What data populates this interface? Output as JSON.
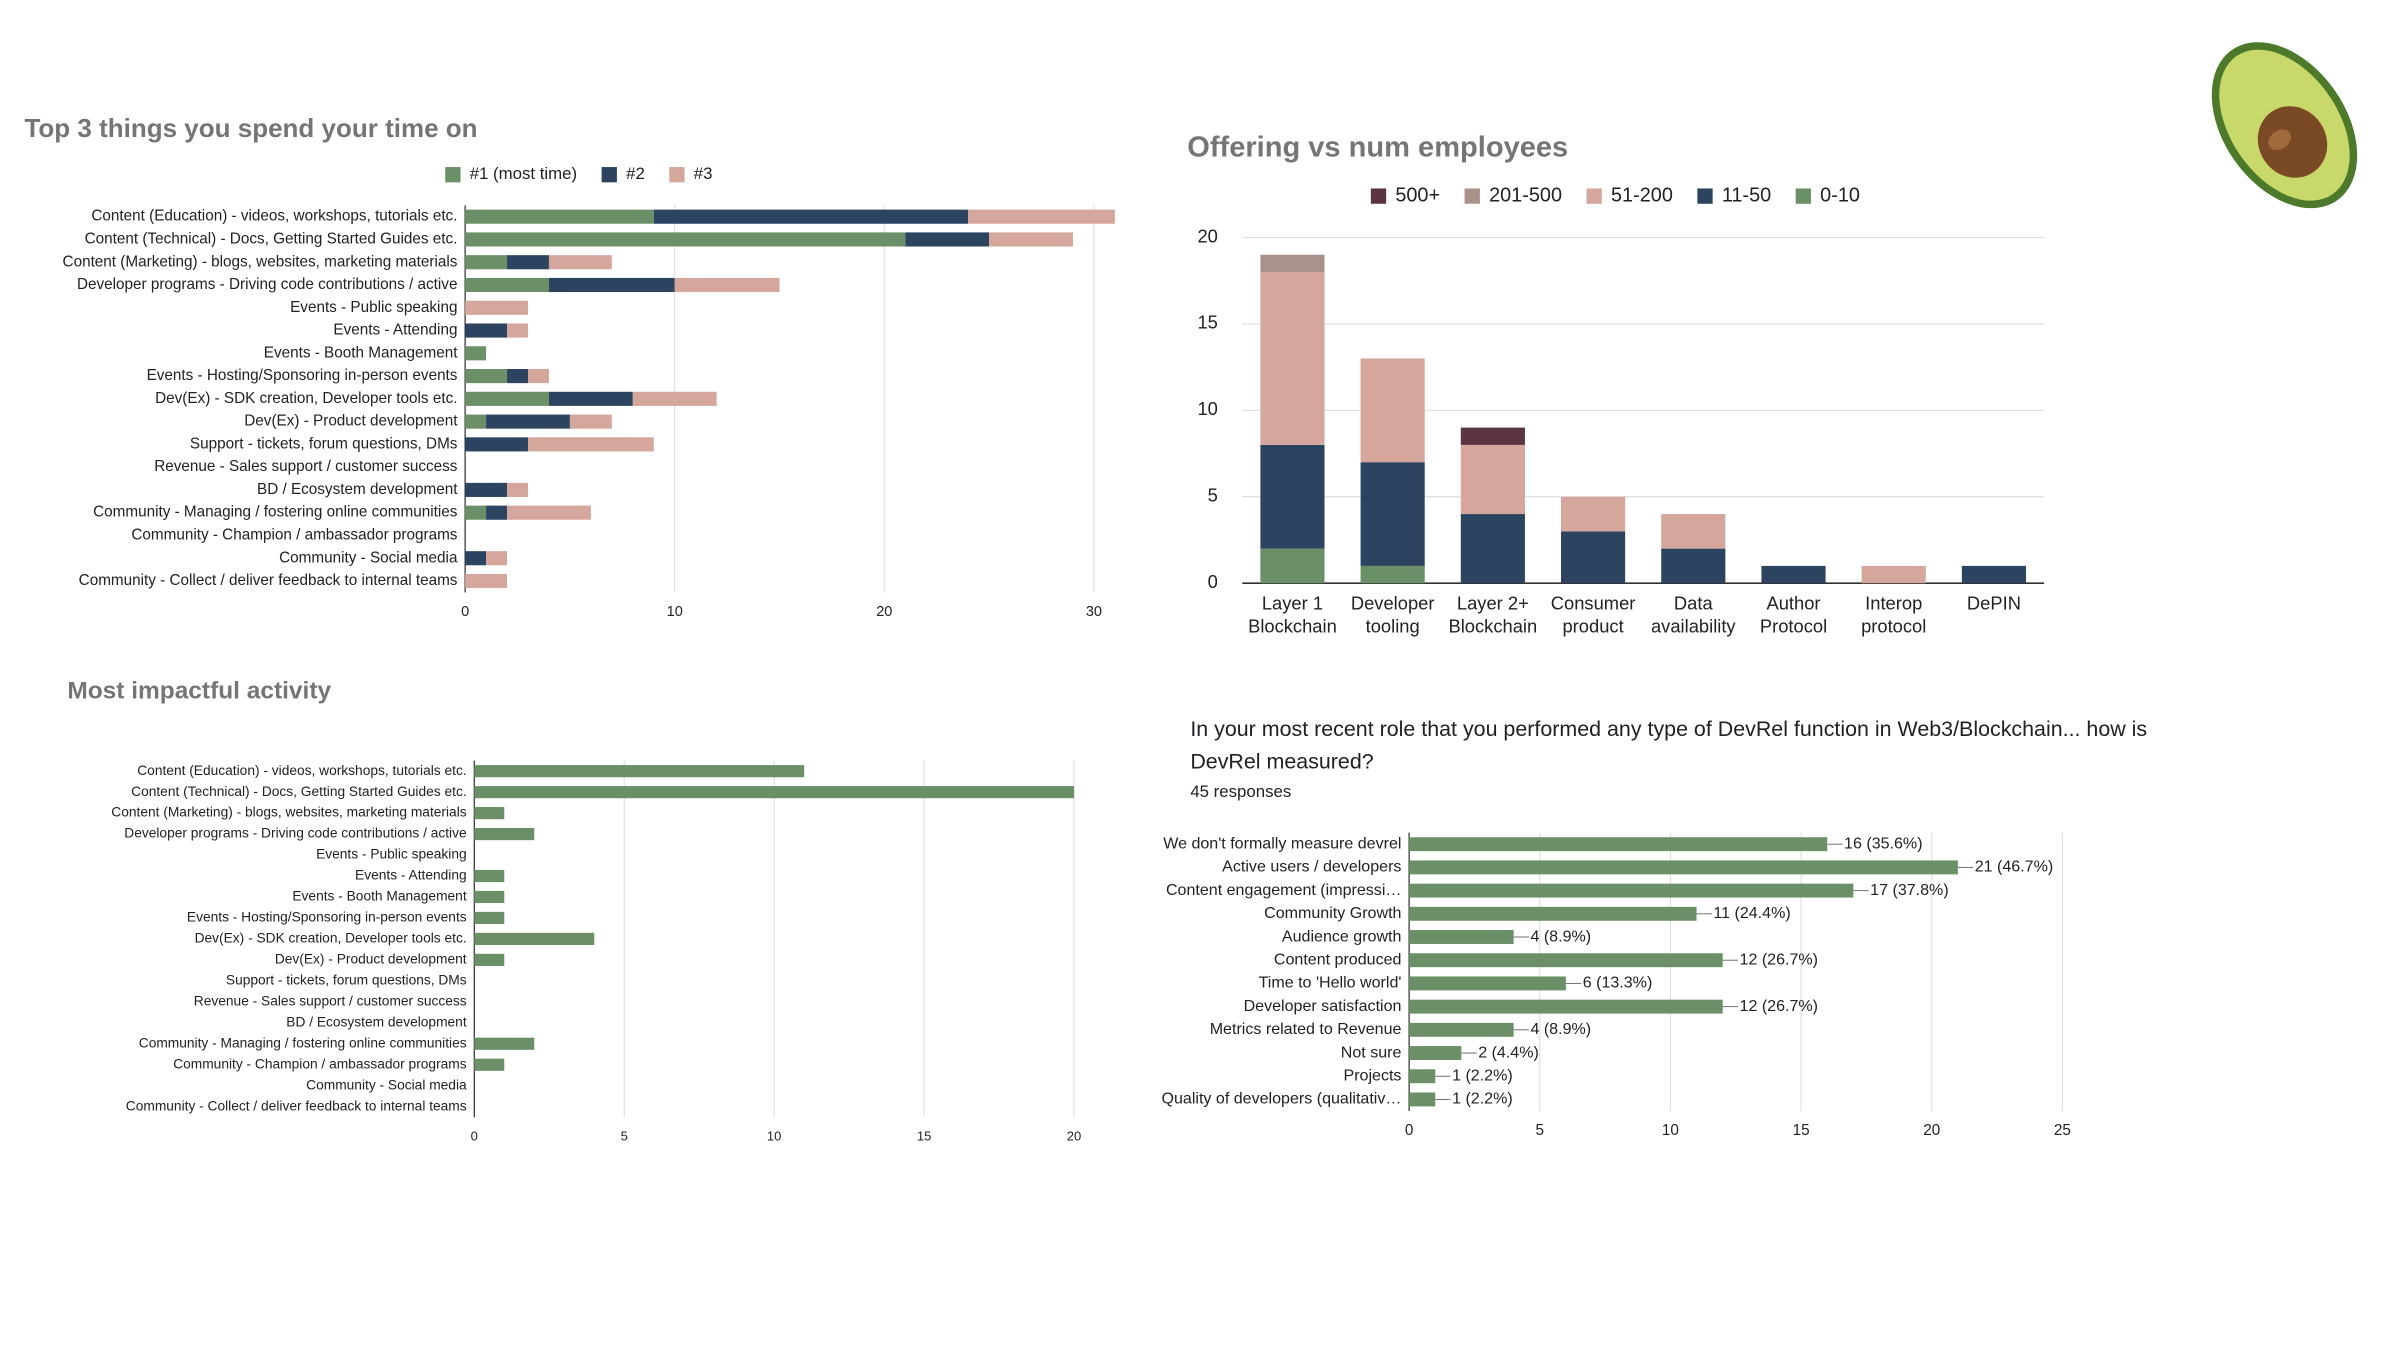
{
  "chart_data": [
    {
      "type": "bar",
      "orientation": "horizontal",
      "stacked": true,
      "title": "Top 3 things you spend your time on",
      "categories": [
        "Content (Education) - videos, workshops, tutorials etc.",
        "Content (Technical) - Docs, Getting Started Guides etc.",
        "Content (Marketing) - blogs, websites, marketing materials",
        "Developer programs - Driving code contributions / active",
        "Events - Public speaking",
        "Events - Attending",
        "Events - Booth Management",
        "Events - Hosting/Sponsoring in-person events",
        "Dev(Ex) - SDK creation, Developer tools etc.",
        "Dev(Ex) - Product development",
        "Support - tickets, forum questions, DMs",
        "Revenue - Sales support / customer success",
        "BD / Ecosystem development",
        "Community - Managing / fostering online communities",
        "Community - Champion / ambassador programs",
        "Community - Social media",
        "Community - Collect / deliver feedback to internal teams"
      ],
      "series": [
        {
          "name": "#1 (most time)",
          "color": "#6b9068",
          "values": [
            9,
            21,
            2,
            4,
            0,
            0,
            1,
            2,
            4,
            1,
            0,
            0,
            0,
            1,
            0,
            0,
            0
          ]
        },
        {
          "name": "#2",
          "color": "#2d4461",
          "values": [
            15,
            4,
            2,
            6,
            0,
            2,
            0,
            1,
            4,
            4,
            3,
            0,
            2,
            1,
            0,
            1,
            0
          ]
        },
        {
          "name": "#3",
          "color": "#d5a69b",
          "values": [
            7,
            4,
            3,
            5,
            3,
            1,
            0,
            1,
            4,
            2,
            6,
            0,
            1,
            4,
            0,
            1,
            2
          ]
        }
      ],
      "xlim": [
        0,
        31
      ],
      "xticks": [
        0,
        10,
        20,
        30
      ],
      "grid": true,
      "legend": "top"
    },
    {
      "type": "bar",
      "orientation": "vertical",
      "stacked": true,
      "title": "Offering vs num employees",
      "categories": [
        "Layer 1 Blockchain",
        "Developer tooling",
        "Layer 2+ Blockchain",
        "Consumer product",
        "Data availability",
        "Author Protocol",
        "Interop protocol",
        "DePIN"
      ],
      "series": [
        {
          "name": "500+",
          "color": "#5c3340",
          "values": [
            0,
            0,
            1,
            0,
            0,
            0,
            0,
            0
          ]
        },
        {
          "name": "201-500",
          "color": "#a8928a",
          "values": [
            1,
            0,
            0,
            0,
            0,
            0,
            0,
            0
          ]
        },
        {
          "name": "51-200",
          "color": "#d5a69b",
          "values": [
            10,
            6,
            4,
            2,
            2,
            0,
            1,
            0
          ]
        },
        {
          "name": "11-50",
          "color": "#2d4461",
          "values": [
            6,
            6,
            4,
            3,
            2,
            1,
            0,
            1
          ]
        },
        {
          "name": "0-10",
          "color": "#6b9068",
          "values": [
            2,
            1,
            0,
            0,
            0,
            0,
            0,
            0
          ]
        }
      ],
      "ylim": [
        0,
        20
      ],
      "yticks": [
        0,
        5,
        10,
        15,
        20
      ],
      "grid": true,
      "legend": "top"
    },
    {
      "type": "bar",
      "orientation": "horizontal",
      "title": "Most impactful activity",
      "categories": [
        "Content (Education) - videos, workshops, tutorials etc.",
        "Content (Technical) - Docs, Getting Started Guides etc.",
        "Content (Marketing) - blogs, websites, marketing materials",
        "Developer programs - Driving code contributions / active",
        "Events - Public speaking",
        "Events - Attending",
        "Events - Booth Management",
        "Events - Hosting/Sponsoring in-person events",
        "Dev(Ex) - SDK creation, Developer tools etc.",
        "Dev(Ex) - Product development",
        "Support - tickets, forum questions, DMs",
        "Revenue - Sales support / customer success",
        "BD / Ecosystem development",
        "Community - Managing / fostering online communities",
        "Community - Champion / ambassador programs",
        "Community - Social media",
        "Community - Collect / deliver feedback to internal teams"
      ],
      "values": [
        11,
        20,
        1,
        2,
        0,
        1,
        1,
        1,
        4,
        1,
        0,
        0,
        0,
        2,
        1,
        0,
        0
      ],
      "color": "#6b9068",
      "xlim": [
        0,
        20
      ],
      "xticks": [
        0,
        5,
        10,
        15,
        20
      ],
      "grid": true
    },
    {
      "type": "bar",
      "orientation": "horizontal",
      "title": "In your most recent role that you performed any type of DevRel function in Web3/Blockchain... how is DevRel measured?",
      "subtitle": "45 responses",
      "categories": [
        "We don't formally measure devrel",
        "Active users / developers",
        "Content engagement (impressi…",
        "Community Growth",
        "Audience growth",
        "Content produced",
        "Time to 'Hello world'",
        "Developer satisfaction",
        "Metrics related to Revenue",
        "Not sure",
        "Projects",
        "Quality of developers (qualitativ…"
      ],
      "values": [
        16,
        21,
        17,
        11,
        4,
        12,
        6,
        12,
        4,
        2,
        1,
        1
      ],
      "value_labels": [
        "16 (35.6%)",
        "21 (46.7%)",
        "17 (37.8%)",
        "11 (24.4%)",
        "4 (8.9%)",
        "12 (26.7%)",
        "6 (13.3%)",
        "12 (26.7%)",
        "4 (8.9%)",
        "2 (4.4%)",
        "1 (2.2%)",
        "1 (2.2%)"
      ],
      "color": "#6b9068",
      "xlim": [
        0,
        25
      ],
      "xticks": [
        0,
        5,
        10,
        15,
        20,
        25
      ],
      "grid": true
    }
  ]
}
